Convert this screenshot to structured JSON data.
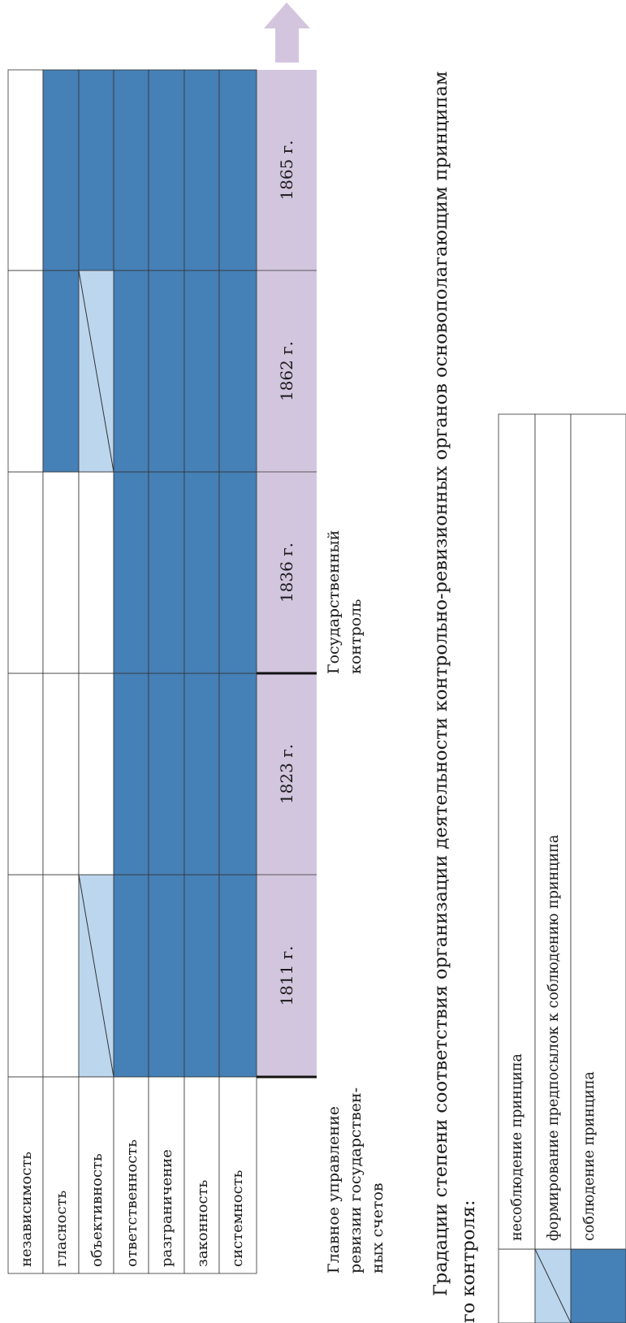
{
  "colors": {
    "principle_met": "#4580b6",
    "principle_forming": "#bcd6ee",
    "principle_not_met": "#ffffff",
    "year_band": "#d2c6de",
    "arrow": "#d4c5df",
    "grid": "#333333"
  },
  "principles": [
    "независимость",
    "гласность",
    "объективность",
    "ответственность",
    "разграничение",
    "законность",
    "системность"
  ],
  "years": [
    "1811 г.",
    "1823 г.",
    "1836 г.",
    "1862 г.",
    "1865 г."
  ],
  "status_grid": [
    [
      "none",
      "none",
      "none",
      "none",
      "none"
    ],
    [
      "none",
      "none",
      "none",
      "met",
      "met"
    ],
    [
      "forming",
      "none",
      "none",
      "forming",
      "met"
    ],
    [
      "met",
      "met",
      "met",
      "met",
      "met"
    ],
    [
      "met",
      "met",
      "met",
      "met",
      "met"
    ],
    [
      "met",
      "met",
      "met",
      "met",
      "met"
    ],
    [
      "met",
      "met",
      "met",
      "met",
      "met"
    ]
  ],
  "bodies": {
    "first": "Главное управление ревизии государствен- ных счетов",
    "first_lines": [
      "Главное управление",
      "ревизии государствен-",
      "ных счетов"
    ],
    "second": "Государственный контроль",
    "second_lines": [
      "Государственный",
      "контроль"
    ]
  },
  "caption": {
    "line1": "Градации степени соответствия организации деятельности контрольно-ревизионных органов основополагающим принципам",
    "line2": "го контроля:"
  },
  "legend": [
    {
      "status": "none",
      "label": "несоблюдение принципа"
    },
    {
      "status": "forming",
      "label": "формирование предпосылок к соблюдению принципа"
    },
    {
      "status": "met",
      "label": "соблюдение принципа"
    }
  ]
}
